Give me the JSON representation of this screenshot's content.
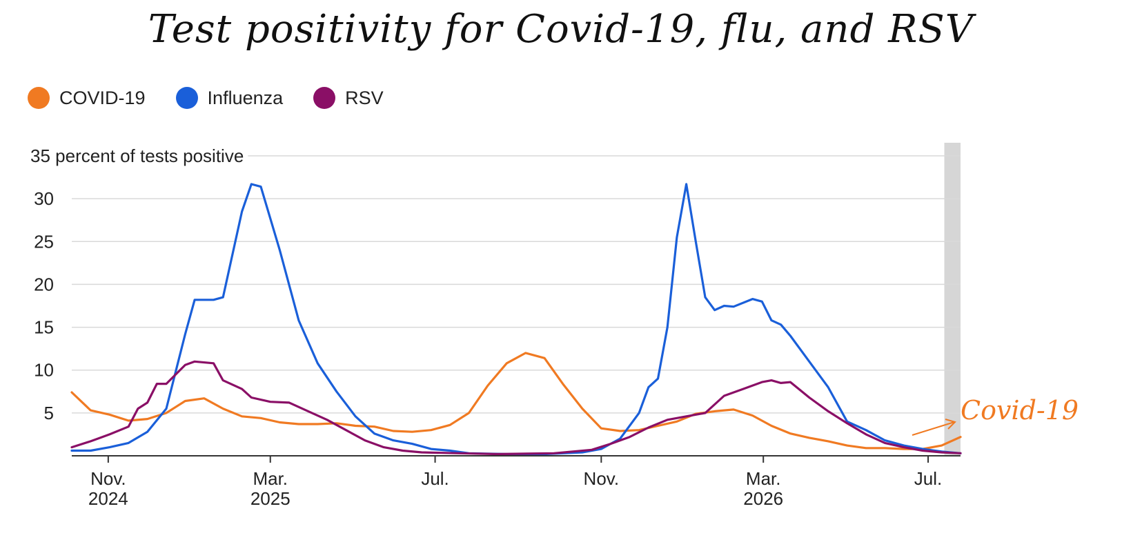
{
  "title": "Test positivity for Covid-19, flu, and RSV",
  "colors": {
    "covid": "#f07a22",
    "influenza": "#1a5fd9",
    "rsv": "#8a0f66",
    "grid": "#d9d9d9",
    "axis": "#333333",
    "highlight": "#d6d6d6"
  },
  "legend": [
    {
      "label": "COVID-19",
      "color": "#f07a22"
    },
    {
      "label": "Influenza",
      "color": "#1a5fd9"
    },
    {
      "label": "RSV",
      "color": "#8a0f66"
    }
  ],
  "annotation": {
    "text": "Covid-19",
    "color": "#f07a22"
  },
  "chart_data": {
    "type": "line",
    "ylabel": "percent of tests positive",
    "ylim": [
      0,
      35
    ],
    "yticks": [
      35,
      30,
      25,
      20,
      15,
      10,
      5
    ],
    "grid": true,
    "legend_position": "top-left",
    "x_start": "2024-10-05",
    "x_end": "2026-07-25",
    "xticks": [
      {
        "date": "2024-11-01",
        "line1": "Nov.",
        "line2": "2024"
      },
      {
        "date": "2025-03-01",
        "line1": "Mar.",
        "line2": "2025"
      },
      {
        "date": "2025-07-01",
        "line1": "Jul.",
        "line2": ""
      },
      {
        "date": "2025-11-01",
        "line1": "Nov.",
        "line2": ""
      },
      {
        "date": "2026-03-01",
        "line1": "Mar.",
        "line2": "2026"
      },
      {
        "date": "2026-07-01",
        "line1": "Jul.",
        "line2": ""
      }
    ],
    "highlight_from": "2026-07-13",
    "series": [
      {
        "name": "COVID-19",
        "color": "#f07a22",
        "points": [
          [
            "2024-10-05",
            7.4
          ],
          [
            "2024-10-19",
            5.3
          ],
          [
            "2024-11-02",
            4.8
          ],
          [
            "2024-11-16",
            4.1
          ],
          [
            "2024-11-30",
            4.3
          ],
          [
            "2024-12-14",
            5.0
          ],
          [
            "2024-12-28",
            6.4
          ],
          [
            "2025-01-11",
            6.7
          ],
          [
            "2025-01-25",
            5.5
          ],
          [
            "2025-02-08",
            4.6
          ],
          [
            "2025-02-22",
            4.4
          ],
          [
            "2025-03-08",
            3.9
          ],
          [
            "2025-03-22",
            3.7
          ],
          [
            "2025-04-05",
            3.7
          ],
          [
            "2025-04-19",
            3.8
          ],
          [
            "2025-05-03",
            3.5
          ],
          [
            "2025-05-17",
            3.4
          ],
          [
            "2025-05-31",
            2.9
          ],
          [
            "2025-06-14",
            2.8
          ],
          [
            "2025-06-28",
            3.0
          ],
          [
            "2025-07-12",
            3.6
          ],
          [
            "2025-07-26",
            5.0
          ],
          [
            "2025-08-09",
            8.2
          ],
          [
            "2025-08-23",
            10.8
          ],
          [
            "2025-09-06",
            12.0
          ],
          [
            "2025-09-20",
            11.4
          ],
          [
            "2025-10-04",
            8.3
          ],
          [
            "2025-10-18",
            5.5
          ],
          [
            "2025-11-01",
            3.2
          ],
          [
            "2025-11-15",
            2.9
          ],
          [
            "2025-11-29",
            3.0
          ],
          [
            "2025-12-13",
            3.5
          ],
          [
            "2025-12-27",
            4.0
          ],
          [
            "2026-01-10",
            4.9
          ],
          [
            "2026-01-24",
            5.2
          ],
          [
            "2026-02-07",
            5.4
          ],
          [
            "2026-02-21",
            4.7
          ],
          [
            "2026-03-07",
            3.5
          ],
          [
            "2026-03-21",
            2.6
          ],
          [
            "2026-04-04",
            2.1
          ],
          [
            "2026-04-18",
            1.7
          ],
          [
            "2026-05-02",
            1.2
          ],
          [
            "2026-05-16",
            0.9
          ],
          [
            "2026-05-30",
            0.9
          ],
          [
            "2026-06-13",
            0.8
          ],
          [
            "2026-06-27",
            0.8
          ],
          [
            "2026-07-11",
            1.2
          ],
          [
            "2026-07-25",
            2.2
          ]
        ]
      },
      {
        "name": "Influenza",
        "color": "#1a5fd9",
        "points": [
          [
            "2024-10-05",
            0.6
          ],
          [
            "2024-10-19",
            0.6
          ],
          [
            "2024-11-02",
            1.0
          ],
          [
            "2024-11-16",
            1.5
          ],
          [
            "2024-11-30",
            2.8
          ],
          [
            "2024-12-14",
            5.5
          ],
          [
            "2024-12-28",
            14.2
          ],
          [
            "2025-01-04",
            18.2
          ],
          [
            "2025-01-18",
            18.2
          ],
          [
            "2025-01-25",
            18.5
          ],
          [
            "2025-02-08",
            28.5
          ],
          [
            "2025-02-15",
            31.7
          ],
          [
            "2025-02-22",
            31.4
          ],
          [
            "2025-03-08",
            24.0
          ],
          [
            "2025-03-22",
            15.8
          ],
          [
            "2025-04-05",
            10.8
          ],
          [
            "2025-04-19",
            7.5
          ],
          [
            "2025-05-03",
            4.6
          ],
          [
            "2025-05-17",
            2.6
          ],
          [
            "2025-05-31",
            1.8
          ],
          [
            "2025-06-14",
            1.4
          ],
          [
            "2025-06-28",
            0.8
          ],
          [
            "2025-07-12",
            0.6
          ],
          [
            "2025-07-26",
            0.3
          ],
          [
            "2025-08-23",
            0.2
          ],
          [
            "2025-09-20",
            0.2
          ],
          [
            "2025-10-18",
            0.4
          ],
          [
            "2025-11-01",
            0.8
          ],
          [
            "2025-11-15",
            2.0
          ],
          [
            "2025-11-29",
            5.0
          ],
          [
            "2025-12-06",
            8.0
          ],
          [
            "2025-12-13",
            9.0
          ],
          [
            "2025-12-20",
            15.0
          ],
          [
            "2025-12-27",
            25.5
          ],
          [
            "2026-01-03",
            31.7
          ],
          [
            "2026-01-10",
            25.0
          ],
          [
            "2026-01-17",
            18.5
          ],
          [
            "2026-01-24",
            17.0
          ],
          [
            "2026-01-31",
            17.5
          ],
          [
            "2026-02-07",
            17.4
          ],
          [
            "2026-02-21",
            18.3
          ],
          [
            "2026-02-28",
            18.0
          ],
          [
            "2026-03-07",
            15.8
          ],
          [
            "2026-03-14",
            15.3
          ],
          [
            "2026-03-21",
            14.0
          ],
          [
            "2026-04-04",
            11.0
          ],
          [
            "2026-04-18",
            8.0
          ],
          [
            "2026-05-02",
            4.0
          ],
          [
            "2026-05-16",
            3.0
          ],
          [
            "2026-05-30",
            1.8
          ],
          [
            "2026-06-13",
            1.2
          ],
          [
            "2026-06-27",
            0.8
          ],
          [
            "2026-07-11",
            0.5
          ],
          [
            "2026-07-25",
            0.3
          ]
        ]
      },
      {
        "name": "RSV",
        "color": "#8a0f66",
        "points": [
          [
            "2024-10-05",
            1.0
          ],
          [
            "2024-10-19",
            1.7
          ],
          [
            "2024-11-02",
            2.5
          ],
          [
            "2024-11-16",
            3.4
          ],
          [
            "2024-11-23",
            5.5
          ],
          [
            "2024-11-30",
            6.2
          ],
          [
            "2024-12-07",
            8.4
          ],
          [
            "2024-12-14",
            8.4
          ],
          [
            "2024-12-28",
            10.6
          ],
          [
            "2025-01-04",
            11.0
          ],
          [
            "2025-01-18",
            10.8
          ],
          [
            "2025-01-25",
            8.8
          ],
          [
            "2025-02-08",
            7.8
          ],
          [
            "2025-02-15",
            6.8
          ],
          [
            "2025-03-01",
            6.3
          ],
          [
            "2025-03-15",
            6.2
          ],
          [
            "2025-03-29",
            5.2
          ],
          [
            "2025-04-12",
            4.2
          ],
          [
            "2025-04-26",
            3.0
          ],
          [
            "2025-05-10",
            1.8
          ],
          [
            "2025-05-24",
            1.0
          ],
          [
            "2025-06-07",
            0.6
          ],
          [
            "2025-06-21",
            0.4
          ],
          [
            "2025-07-19",
            0.3
          ],
          [
            "2025-08-16",
            0.2
          ],
          [
            "2025-09-27",
            0.3
          ],
          [
            "2025-10-25",
            0.7
          ],
          [
            "2025-11-08",
            1.4
          ],
          [
            "2025-11-22",
            2.2
          ],
          [
            "2025-12-06",
            3.3
          ],
          [
            "2025-12-20",
            4.2
          ],
          [
            "2026-01-03",
            4.6
          ],
          [
            "2026-01-17",
            5.0
          ],
          [
            "2026-01-31",
            7.0
          ],
          [
            "2026-02-14",
            7.8
          ],
          [
            "2026-02-28",
            8.6
          ],
          [
            "2026-03-07",
            8.8
          ],
          [
            "2026-03-14",
            8.5
          ],
          [
            "2026-03-21",
            8.6
          ],
          [
            "2026-04-04",
            6.8
          ],
          [
            "2026-04-18",
            5.2
          ],
          [
            "2026-05-02",
            3.8
          ],
          [
            "2026-05-16",
            2.5
          ],
          [
            "2026-05-30",
            1.5
          ],
          [
            "2026-06-13",
            1.0
          ],
          [
            "2026-06-27",
            0.6
          ],
          [
            "2026-07-11",
            0.4
          ],
          [
            "2026-07-25",
            0.3
          ]
        ]
      }
    ]
  }
}
